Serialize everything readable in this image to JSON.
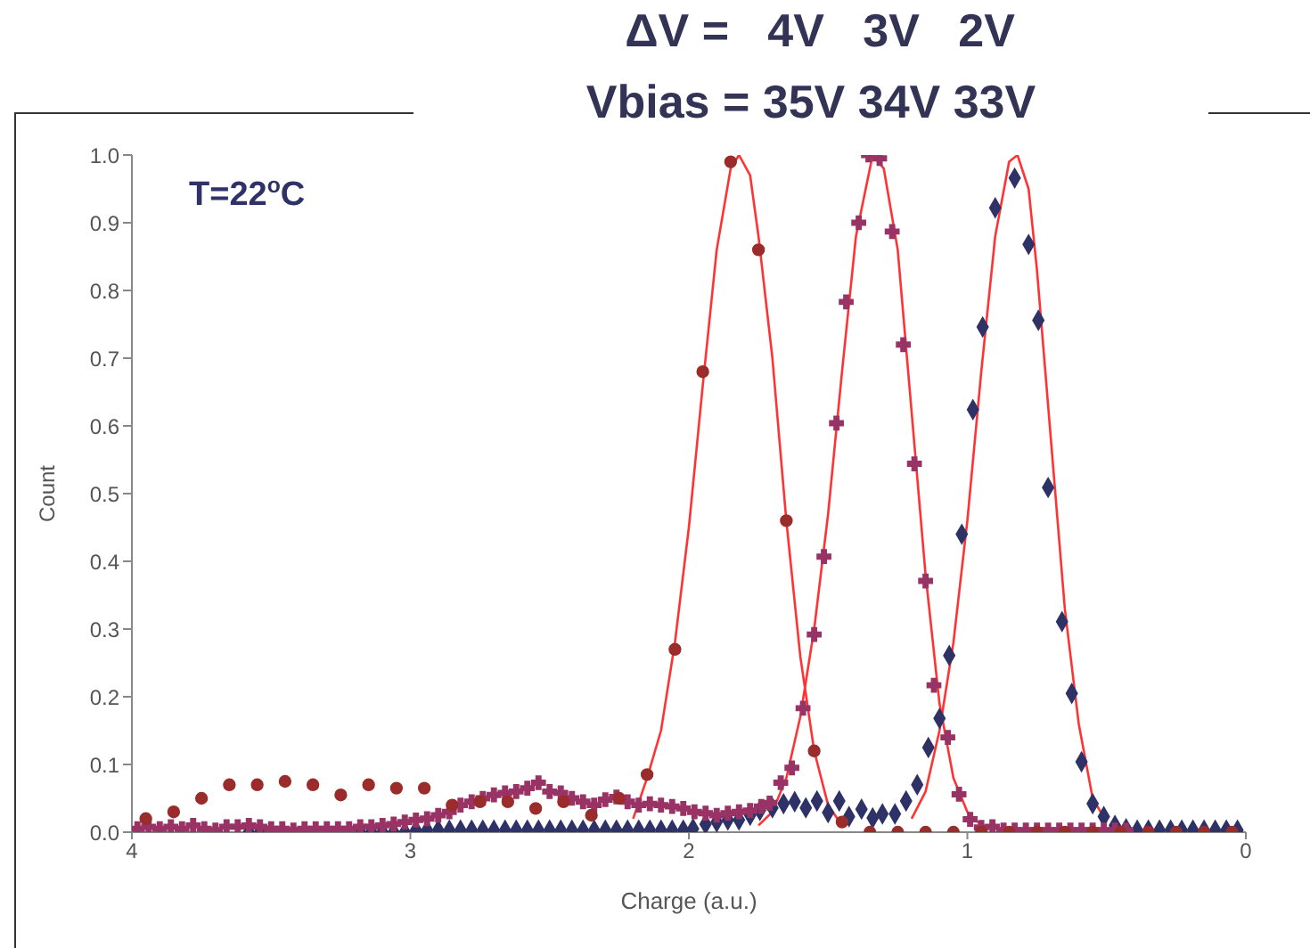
{
  "chart_data": {
    "type": "scatter",
    "title": "ΔV =   4V   3V   2V",
    "subtitle": "Vbias = 35V 34V 33V",
    "xlabel": "Charge (a.u.)",
    "ylabel": "Count",
    "annotations": [
      "T=22$^{o}$C"
    ],
    "xlim": [
      4,
      0
    ],
    "xticks": [
      4,
      3,
      2,
      1,
      0
    ],
    "ylim": [
      0,
      1
    ],
    "yticks": [
      {
        "value": 0,
        "label": "0.0"
      },
      0.1,
      0.2,
      0.3,
      0.4,
      0.5,
      0.6,
      0.7,
      0.8,
      0.9,
      {
        "value": 1,
        "label": "1.0"
      }
    ],
    "series": [
      {
        "marker": "circle",
        "color": "#9b2c2c",
        "x": [
          3.95,
          3.85,
          3.75,
          3.65,
          3.55,
          3.45,
          3.35,
          3.25,
          3.15,
          3.05,
          2.95,
          2.85,
          2.75,
          2.65,
          2.55,
          2.45,
          2.35,
          2.25,
          2.15,
          2.05,
          1.95,
          1.85,
          1.75,
          1.65,
          1.55,
          1.45,
          1.35,
          1.25,
          1.15,
          1.05,
          0.95,
          0.85,
          0.75,
          0.65,
          0.55,
          0.45,
          0.35,
          0.25,
          0.15,
          0.05
        ],
        "values": [
          0.02,
          0.03,
          0.05,
          0.07,
          0.07,
          0.075,
          0.07,
          0.055,
          0.07,
          0.065,
          0.065,
          0.04,
          0.045,
          0.045,
          0.035,
          0.045,
          0.025,
          0.05,
          0.085,
          0.27,
          0.68,
          0.99,
          0.86,
          0.46,
          0.12,
          0.015,
          0,
          0,
          0,
          0,
          0,
          0,
          0,
          0,
          0,
          0,
          0,
          0,
          0,
          0
        ]
      },
      {
        "marker": "cross",
        "color": "#993366",
        "x": [
          3.98,
          3.94,
          3.9,
          3.86,
          3.82,
          3.78,
          3.74,
          3.7,
          3.66,
          3.62,
          3.58,
          3.54,
          3.5,
          3.46,
          3.42,
          3.38,
          3.34,
          3.3,
          3.26,
          3.22,
          3.18,
          3.14,
          3.1,
          3.06,
          3.02,
          2.98,
          2.94,
          2.9,
          2.86,
          2.82,
          2.78,
          2.74,
          2.7,
          2.66,
          2.62,
          2.58,
          2.54,
          2.5,
          2.46,
          2.42,
          2.38,
          2.34,
          2.3,
          2.26,
          2.22,
          2.18,
          2.14,
          2.1,
          2.06,
          2.02,
          1.98,
          1.94,
          1.9,
          1.86,
          1.82,
          1.78,
          1.74,
          1.71,
          1.67,
          1.63,
          1.59,
          1.55,
          1.515,
          1.47,
          1.435,
          1.39,
          1.355,
          1.315,
          1.27,
          1.23,
          1.19,
          1.15,
          1.12,
          1.07,
          1.03,
          0.99,
          0.95,
          0.91,
          0.87,
          0.83,
          0.79,
          0.75,
          0.71,
          0.67,
          0.63,
          0.59,
          0.55,
          0.51,
          0.47,
          0.43
        ],
        "values": [
          0.005,
          0.008,
          0.005,
          0.008,
          0.005,
          0.01,
          0.005,
          0.003,
          0.008,
          0.008,
          0.01,
          0.008,
          0.005,
          0.005,
          0.003,
          0.005,
          0.005,
          0.005,
          0.005,
          0.005,
          0.008,
          0.008,
          0.01,
          0.012,
          0.015,
          0.018,
          0.02,
          0.025,
          0.03,
          0.04,
          0.045,
          0.05,
          0.055,
          0.058,
          0.06,
          0.065,
          0.073,
          0.06,
          0.058,
          0.05,
          0.045,
          0.04,
          0.048,
          0.052,
          0.045,
          0.04,
          0.042,
          0.04,
          0.038,
          0.035,
          0.03,
          0.028,
          0.025,
          0.028,
          0.03,
          0.032,
          0.038,
          0.043,
          0.073,
          0.095,
          0.183,
          0.292,
          0.407,
          0.604,
          0.783,
          0.9,
          1.0,
          0.995,
          0.887,
          0.72,
          0.544,
          0.371,
          0.217,
          0.14,
          0.056,
          0.019,
          0.007,
          0.008,
          0.003,
          0.003,
          0.003,
          0.003,
          0.003,
          0.003,
          0.003,
          0.003,
          0.003,
          0.003,
          0.003,
          0.003
        ]
      },
      {
        "marker": "diamond",
        "color": "#2e3266",
        "x": [
          3.58,
          3.54,
          3.5,
          3.46,
          3.42,
          3.38,
          3.34,
          3.3,
          3.26,
          3.22,
          3.18,
          3.14,
          3.1,
          3.06,
          3.02,
          2.98,
          2.94,
          2.9,
          2.86,
          2.82,
          2.78,
          2.74,
          2.7,
          2.66,
          2.62,
          2.58,
          2.54,
          2.5,
          2.46,
          2.42,
          2.38,
          2.34,
          2.3,
          2.26,
          2.22,
          2.18,
          2.14,
          2.1,
          2.06,
          2.02,
          1.985,
          1.94,
          1.9,
          1.86,
          1.82,
          1.78,
          1.745,
          1.7,
          1.66,
          1.62,
          1.58,
          1.54,
          1.5,
          1.46,
          1.425,
          1.38,
          1.34,
          1.305,
          1.26,
          1.22,
          1.18,
          1.14,
          1.1,
          1.065,
          1.02,
          0.98,
          0.945,
          0.9,
          0.83,
          0.78,
          0.745,
          0.71,
          0.66,
          0.625,
          0.59,
          0.55,
          0.51,
          0.47,
          0.43,
          0.39,
          0.35,
          0.31,
          0.27,
          0.23,
          0.19,
          0.15,
          0.11,
          0.07,
          0.03
        ],
        "values": [
          0,
          0,
          null,
          null,
          null,
          null,
          null,
          null,
          null,
          null,
          0,
          0,
          0,
          0,
          0,
          0.003,
          0.003,
          0.003,
          0.003,
          0.003,
          0.003,
          0.003,
          0.003,
          0.003,
          0.003,
          0.003,
          0.003,
          0.003,
          0.003,
          0.003,
          0.003,
          0.003,
          0.003,
          0.003,
          0.003,
          0.003,
          0.003,
          0.003,
          0.003,
          0.003,
          0.005,
          0.012,
          0.015,
          0.018,
          0.018,
          0.025,
          0.032,
          0.036,
          0.042,
          0.045,
          0.036,
          0.046,
          0.029,
          0.046,
          0.023,
          0.034,
          0.021,
          0.027,
          0.027,
          0.046,
          0.07,
          0.125,
          0.168,
          0.261,
          0.44,
          0.624,
          0.746,
          0.922,
          0.966,
          0.868,
          0.756,
          0.509,
          0.311,
          0.205,
          0.104,
          0.042,
          0.023,
          0.01,
          0.005,
          0.003,
          0.003,
          0.003,
          0.003,
          0.003,
          0.003,
          0.003,
          0.003,
          0.003,
          0.003
        ]
      },
      {
        "type": "line",
        "marker": "none",
        "line_style": "solid",
        "color": "#ff3333",
        "x": [
          2.2,
          2.15,
          2.1,
          2.05,
          2.0,
          1.95,
          1.9,
          1.85,
          1.82,
          1.78,
          1.75,
          1.7,
          1.65,
          1.6,
          1.55,
          1.5,
          1.45
        ],
        "values": [
          0.02,
          0.08,
          0.15,
          0.28,
          0.45,
          0.66,
          0.86,
          0.98,
          1.0,
          0.97,
          0.88,
          0.7,
          0.46,
          0.26,
          0.12,
          0.04,
          0.01
        ]
      },
      {
        "type": "line",
        "marker": "none",
        "line_style": "solid",
        "color": "#ff3333",
        "x": [
          1.75,
          1.7,
          1.65,
          1.6,
          1.55,
          1.5,
          1.45,
          1.4,
          1.34,
          1.3,
          1.25,
          1.2,
          1.15,
          1.1,
          1.05,
          1.0,
          0.95
        ],
        "values": [
          0.01,
          0.03,
          0.08,
          0.17,
          0.3,
          0.47,
          0.68,
          0.88,
          1.0,
          0.98,
          0.86,
          0.62,
          0.38,
          0.19,
          0.08,
          0.03,
          0.01
        ]
      },
      {
        "type": "line",
        "marker": "none",
        "line_style": "solid",
        "color": "#ff3333",
        "x": [
          1.2,
          1.15,
          1.1,
          1.05,
          1.0,
          0.95,
          0.9,
          0.85,
          0.82,
          0.78,
          0.75,
          0.7,
          0.65,
          0.6,
          0.55,
          0.5
        ],
        "values": [
          0.02,
          0.06,
          0.15,
          0.28,
          0.46,
          0.68,
          0.88,
          0.99,
          1.0,
          0.95,
          0.83,
          0.58,
          0.33,
          0.16,
          0.05,
          0.015
        ]
      }
    ]
  }
}
